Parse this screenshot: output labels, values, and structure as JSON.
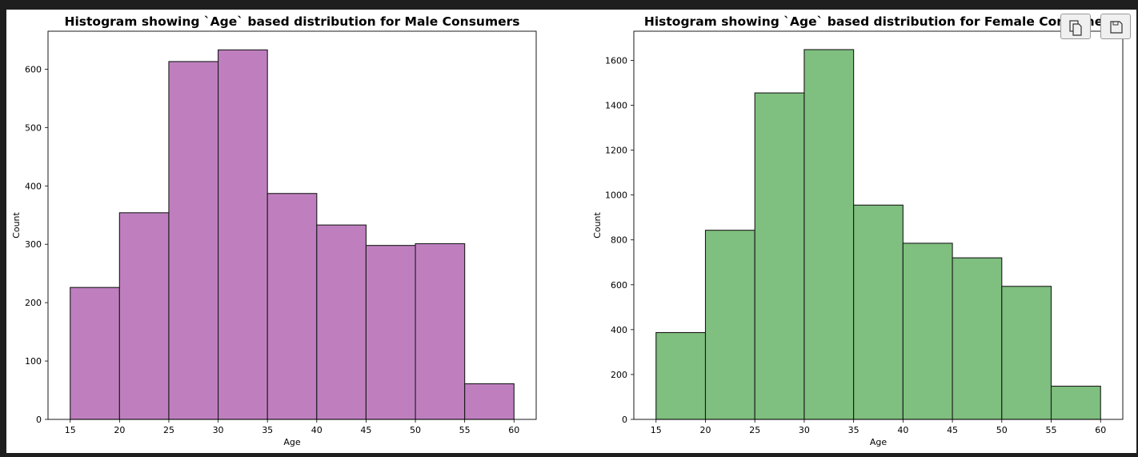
{
  "chart_data": [
    {
      "type": "bar",
      "title": "Histogram showing `Age` based distribution for Male Consumers",
      "xlabel": "Age",
      "ylabel": "Count",
      "bin_edges": [
        15,
        20,
        25,
        30,
        35,
        40,
        45,
        50,
        55,
        60
      ],
      "values": [
        226,
        354,
        613,
        633,
        387,
        333,
        298,
        301,
        61
      ],
      "xlim": [
        12.75,
        62.25
      ],
      "ylim": [
        0,
        665
      ],
      "xticks": [
        15,
        20,
        25,
        30,
        35,
        40,
        45,
        50,
        55,
        60
      ],
      "yticks": [
        0,
        100,
        200,
        300,
        400,
        500,
        600
      ],
      "bar_color": "#bf7fbf",
      "edge_color": "#1a1a1a",
      "grid": false,
      "legend": "none"
    },
    {
      "type": "bar",
      "title": "Histogram showing `Age` based distribution for Female Consumers",
      "xlabel": "Age",
      "ylabel": "Count",
      "bin_edges": [
        15,
        20,
        25,
        30,
        35,
        40,
        45,
        50,
        55,
        60
      ],
      "values": [
        387,
        843,
        1455,
        1648,
        955,
        785,
        720,
        593,
        148
      ],
      "xlim": [
        12.75,
        62.25
      ],
      "ylim": [
        0,
        1730
      ],
      "xticks": [
        15,
        20,
        25,
        30,
        35,
        40,
        45,
        50,
        55,
        60
      ],
      "yticks": [
        0,
        200,
        400,
        600,
        800,
        1000,
        1200,
        1400,
        1600
      ],
      "bar_color": "#7fbf7f",
      "edge_color": "#1a1a1a",
      "grid": false,
      "legend": "none"
    }
  ],
  "toolbar": {
    "copy_icon": "copy-icon",
    "save_icon": "save-icon"
  }
}
